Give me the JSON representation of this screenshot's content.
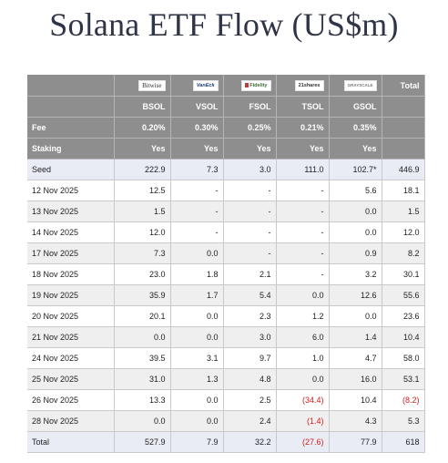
{
  "title": "Solana ETF Flow (US$m)",
  "logos": [
    {
      "icon": "bitwise-logo",
      "text": "Bitwise"
    },
    {
      "icon": "vaneck-logo",
      "text": "VanEck"
    },
    {
      "icon": "fidelity-logo",
      "text": "Fidelity"
    },
    {
      "icon": "21shares-logo",
      "text": "21shares"
    },
    {
      "icon": "grayscale-logo",
      "text": "GRAYSCALE"
    }
  ],
  "total_header": "Total",
  "tickers": [
    "BSOL",
    "VSOL",
    "FSOL",
    "TSOL",
    "GSOL"
  ],
  "fee_label": "Fee",
  "fees": [
    "0.20%",
    "0.30%",
    "0.25%",
    "0.21%",
    "0.35%"
  ],
  "staking_label": "Staking",
  "staking": [
    "Yes",
    "Yes",
    "Yes",
    "Yes",
    "Yes"
  ],
  "rows": [
    {
      "label": "Seed",
      "values": [
        "222.9",
        "7.3",
        "3.0",
        "111.0",
        "102.7*"
      ],
      "total": "446.9"
    },
    {
      "label": "12 Nov 2025",
      "values": [
        "12.5",
        "-",
        "-",
        "-",
        "5.6"
      ],
      "total": "18.1"
    },
    {
      "label": "13 Nov 2025",
      "values": [
        "1.5",
        "-",
        "-",
        "-",
        "0.0"
      ],
      "total": "1.5"
    },
    {
      "label": "14 Nov 2025",
      "values": [
        "12.0",
        "-",
        "-",
        "-",
        "0.0"
      ],
      "total": "12.0"
    },
    {
      "label": "17 Nov 2025",
      "values": [
        "7.3",
        "0.0",
        "-",
        "-",
        "0.9"
      ],
      "total": "8.2"
    },
    {
      "label": "18 Nov 2025",
      "values": [
        "23.0",
        "1.8",
        "2.1",
        "-",
        "3.2"
      ],
      "total": "30.1"
    },
    {
      "label": "19 Nov 2025",
      "values": [
        "35.9",
        "1.7",
        "5.4",
        "0.0",
        "12.6"
      ],
      "total": "55.6"
    },
    {
      "label": "20 Nov 2025",
      "values": [
        "20.1",
        "0.0",
        "2.3",
        "1.2",
        "0.0"
      ],
      "total": "23.6"
    },
    {
      "label": "21 Nov 2025",
      "values": [
        "0.0",
        "0.0",
        "3.0",
        "6.0",
        "1.4"
      ],
      "total": "10.4"
    },
    {
      "label": "24 Nov 2025",
      "values": [
        "39.5",
        "3.1",
        "9.7",
        "1.0",
        "4.7"
      ],
      "total": "58.0"
    },
    {
      "label": "25 Nov 2025",
      "values": [
        "31.0",
        "1.3",
        "4.8",
        "0.0",
        "16.0"
      ],
      "total": "53.1"
    },
    {
      "label": "26 Nov 2025",
      "values": [
        "13.3",
        "0.0",
        "2.5",
        "(34.4)",
        "10.4"
      ],
      "total": "(8.2)"
    },
    {
      "label": "28 Nov 2025",
      "values": [
        "0.0",
        "0.0",
        "2.4",
        "(1.4)",
        "4.3"
      ],
      "total": "5.3"
    },
    {
      "label": "Total",
      "values": [
        "527.9",
        "7.9",
        "32.2",
        "(27.6)",
        "77.9"
      ],
      "total": "618"
    }
  ],
  "colors": {
    "header_bg": "#8e8e8e",
    "negative": "#d42020",
    "highlight_row": "#e9ecf5",
    "stripe": "#efefef"
  }
}
